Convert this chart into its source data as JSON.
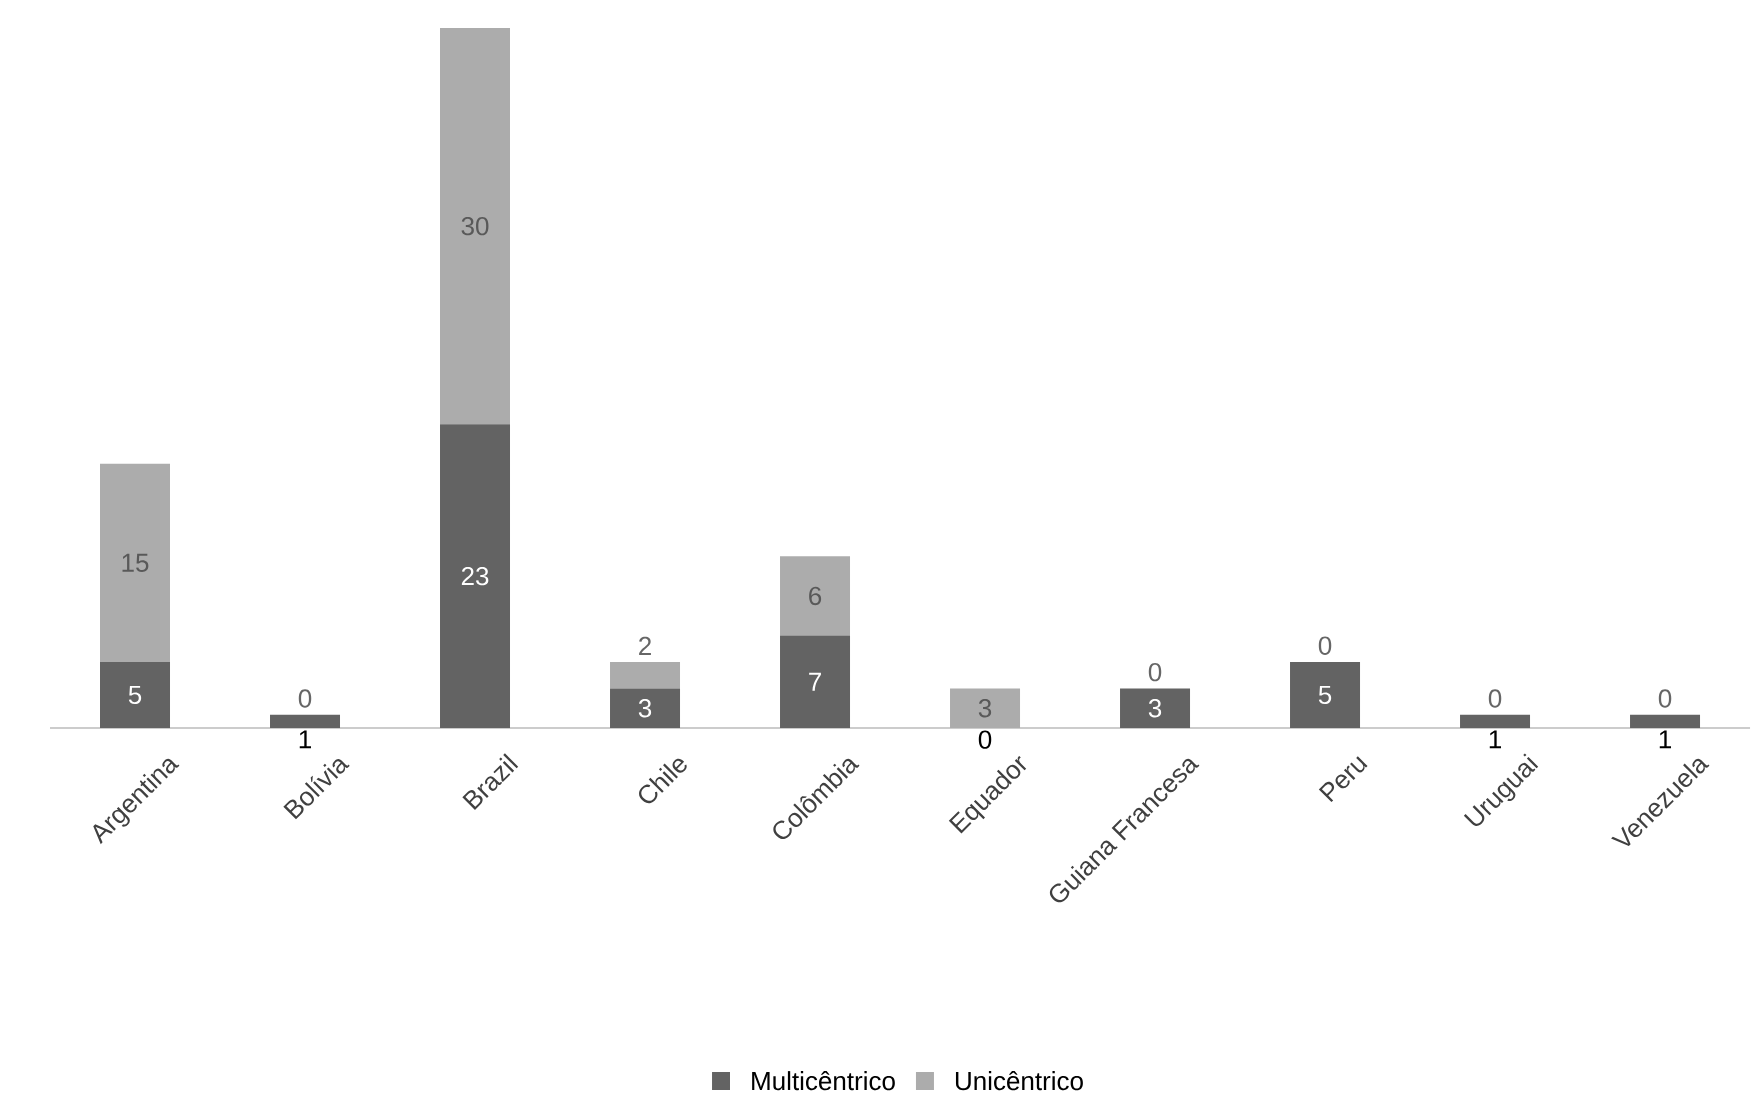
{
  "chart_data": {
    "type": "bar",
    "stacked": true,
    "data_labels": true,
    "legend": "bottom",
    "categories": [
      "Argentina",
      "Bolívia",
      "Brazil",
      "Chile",
      "Colômbia",
      "Equador",
      "Guiana Francesa",
      "Peru",
      "Uruguai",
      "Venezuela"
    ],
    "series": [
      {
        "name": "Multicêntrico",
        "color": "#636363",
        "values": [
          5,
          1,
          23,
          3,
          7,
          0,
          3,
          5,
          1,
          1
        ]
      },
      {
        "name": "Unicêntrico",
        "color": "#acacac",
        "values": [
          15,
          0,
          30,
          2,
          6,
          3,
          0,
          0,
          0,
          0
        ]
      }
    ]
  }
}
